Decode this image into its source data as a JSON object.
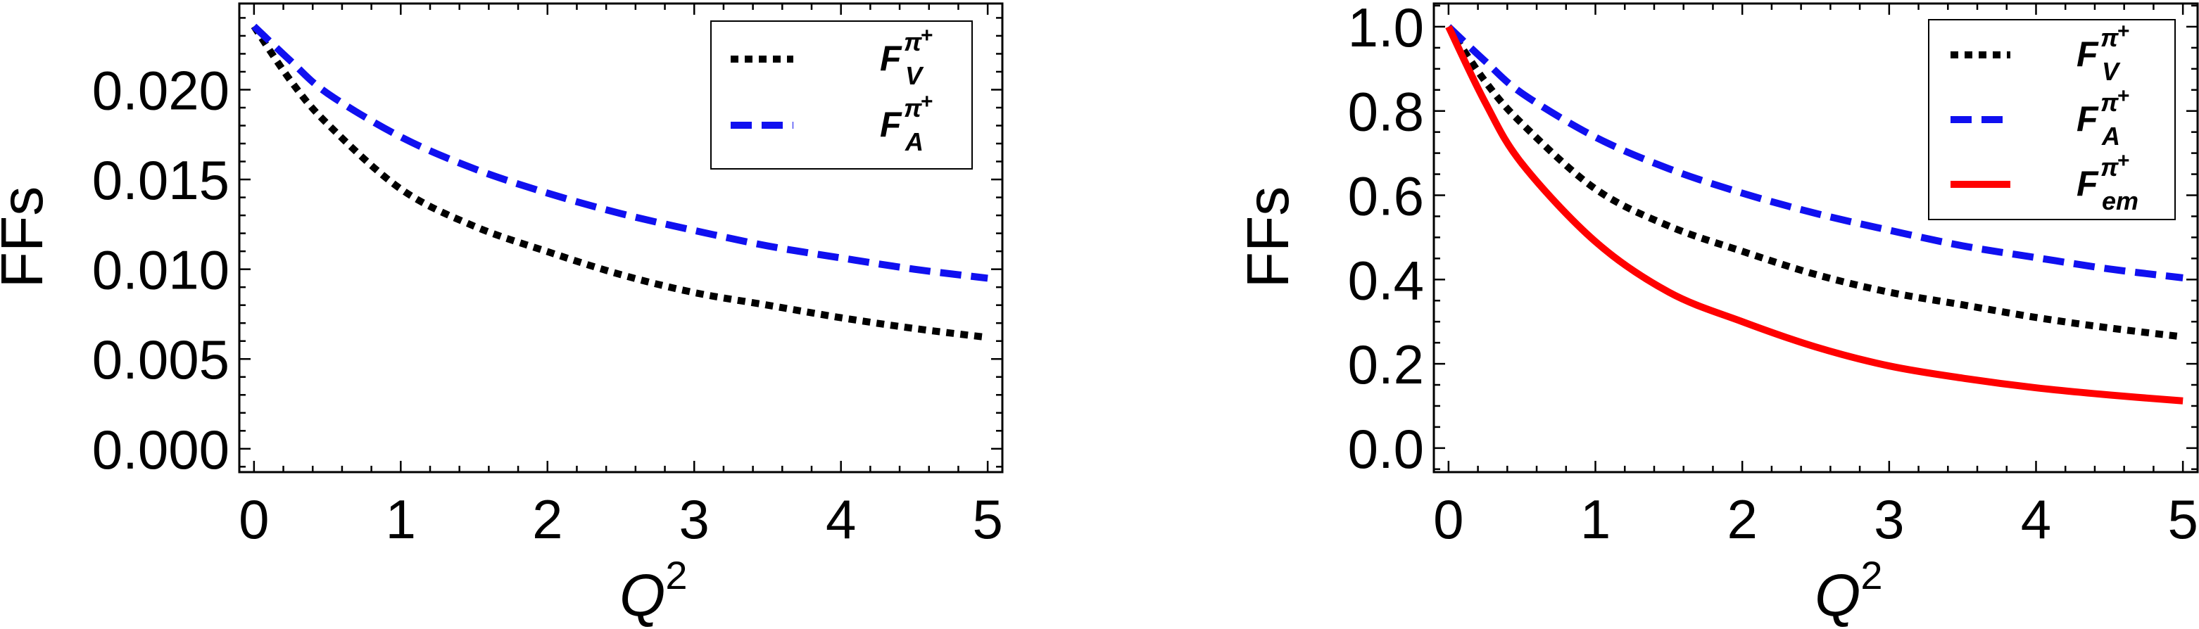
{
  "colors": {
    "FV": "#000000",
    "FA": "#1010f0",
    "Fem": "#ff0000"
  },
  "chart_data": [
    {
      "type": "line",
      "xlabel": "Q",
      "xlabel_sup": "2",
      "ylabel": "FFs",
      "xlim": [
        -0.1,
        5.1
      ],
      "ylim": [
        -0.0013,
        0.0248
      ],
      "xticks": [
        0,
        1,
        2,
        3,
        4,
        5
      ],
      "xtick_labels": [
        "0",
        "1",
        "2",
        "3",
        "4",
        "5"
      ],
      "yticks": [
        0,
        0.005,
        0.01,
        0.015,
        0.02
      ],
      "ytick_labels": [
        "0.000",
        "0.005",
        "0.010",
        "0.015",
        "0.020"
      ],
      "grid": false,
      "legend_placement": "top-right",
      "x": [
        0,
        0.25,
        0.5,
        1,
        1.5,
        2,
        2.5,
        3,
        3.5,
        4,
        4.5,
        5
      ],
      "series": [
        {
          "key": "FV",
          "name": {
            "base": "F",
            "sub": "V",
            "sup": "π",
            "supsup": "+"
          },
          "style": "dotted",
          "values": [
            0.02353,
            0.0205,
            0.0181,
            0.01447,
            0.0124,
            0.01098,
            0.0097,
            0.0087,
            0.008,
            0.0073,
            0.0067,
            0.0062
          ]
        },
        {
          "key": "FA",
          "name": {
            "base": "F",
            "sub": "A",
            "sup": "π",
            "supsup": "+"
          },
          "style": "dashed",
          "values": [
            0.02353,
            0.0216,
            0.0198,
            0.01737,
            0.0156,
            0.01424,
            0.0131,
            0.01216,
            0.0113,
            0.01063,
            0.01,
            0.0095
          ]
        }
      ]
    },
    {
      "type": "line",
      "xlabel": "Q",
      "xlabel_sup": "2",
      "ylabel": "FFs",
      "xlim": [
        -0.1,
        5.1
      ],
      "ylim": [
        -0.057,
        1.055
      ],
      "xticks": [
        0,
        1,
        2,
        3,
        4,
        5
      ],
      "xtick_labels": [
        "0",
        "1",
        "2",
        "3",
        "4",
        "5"
      ],
      "yticks": [
        0,
        0.2,
        0.4,
        0.6,
        0.8,
        1.0
      ],
      "ytick_labels": [
        "0.0",
        "0.2",
        "0.4",
        "0.6",
        "0.8",
        "1.0"
      ],
      "grid": false,
      "legend_placement": "top-right",
      "x": [
        0,
        0.25,
        0.5,
        1,
        1.5,
        2,
        2.5,
        3,
        3.5,
        4,
        4.5,
        5
      ],
      "series": [
        {
          "key": "FV",
          "name": {
            "base": "F",
            "sub": "V",
            "sup": "π",
            "supsup": "+"
          },
          "style": "dotted",
          "values": [
            1.0,
            0.87,
            0.77,
            0.615,
            0.527,
            0.467,
            0.412,
            0.37,
            0.34,
            0.31,
            0.285,
            0.264
          ]
        },
        {
          "key": "FA",
          "name": {
            "base": "F",
            "sub": "A",
            "sup": "π",
            "supsup": "+"
          },
          "style": "dashed",
          "values": [
            1.0,
            0.918,
            0.842,
            0.738,
            0.663,
            0.605,
            0.557,
            0.517,
            0.48,
            0.452,
            0.425,
            0.404
          ]
        },
        {
          "key": "Fem",
          "name": {
            "base": "F",
            "sub": "em",
            "sup": "π",
            "supsup": "+"
          },
          "style": "solid",
          "values": [
            1.0,
            0.82,
            0.675,
            0.49,
            0.37,
            0.3,
            0.24,
            0.195,
            0.166,
            0.143,
            0.126,
            0.112
          ]
        }
      ]
    }
  ]
}
